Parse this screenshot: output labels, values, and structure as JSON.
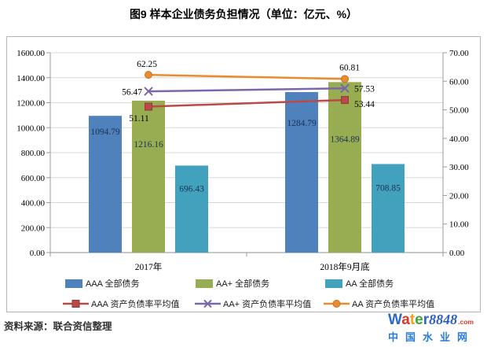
{
  "title": "图9  样本企业债务负担情况（单位：亿元、%）",
  "source": "资料来源：联合资信整理",
  "watermark": {
    "letters": [
      {
        "ch": "W",
        "color": "#2e6ac1"
      },
      {
        "ch": "a",
        "color": "#d93a2b"
      },
      {
        "ch": "t",
        "color": "#f0a11c"
      },
      {
        "ch": "e",
        "color": "#3da43a"
      },
      {
        "ch": "r",
        "color": "#2e6ac1"
      }
    ],
    "number": "8848",
    "number_color": "#2e5fc0",
    "tld": ".com",
    "tld_color": "#d93a2b",
    "subtitle": "中国水业网",
    "subtitle_color": "#2b7cd3"
  },
  "chart_data": {
    "type": "bar",
    "subtype": "grouped bars with overlaid line series (dual axis)",
    "categories": [
      "2017年",
      "2018年9月底"
    ],
    "bar_series": [
      {
        "name": "AAA 全部债务",
        "color": "#4f81bd",
        "values": [
          1094.79,
          1284.79
        ]
      },
      {
        "name": "AA+ 全部债务",
        "color": "#98ad52",
        "values": [
          1216.16,
          1364.89
        ]
      },
      {
        "name": "AA 全部债务",
        "color": "#42a2bd",
        "values": [
          696.43,
          708.85
        ]
      }
    ],
    "line_series": [
      {
        "name": "AAA 资产负债率平均值",
        "color": "#b94a47",
        "marker": "square",
        "values": [
          51.11,
          53.44
        ]
      },
      {
        "name": "AA+ 资产负债率平均值",
        "color": "#7a68a6",
        "marker": "x",
        "values": [
          56.47,
          57.53
        ]
      },
      {
        "name": "AA 资产负债率平均值",
        "color": "#ea8c2e",
        "marker": "circle",
        "values": [
          62.25,
          60.81
        ]
      }
    ],
    "left_axis": {
      "min": 0,
      "max": 1600,
      "step": 200,
      "ticks": [
        "0.00",
        "200.00",
        "400.00",
        "600.00",
        "800.00",
        "1000.00",
        "1200.00",
        "1400.00",
        "1600.00"
      ]
    },
    "right_axis": {
      "min": 0,
      "max": 70,
      "step": 10,
      "ticks": [
        "0.00",
        "10.00",
        "20.00",
        "30.00",
        "40.00",
        "50.00",
        "60.00",
        "70.00"
      ]
    },
    "units": "亿元、%",
    "grid": true,
    "legend_position": "bottom",
    "label_color_bars": "#1b3156",
    "label_color_lines": "#000000",
    "grid_color": "#d8d8d8",
    "axis_color": "#9b9b9b"
  }
}
